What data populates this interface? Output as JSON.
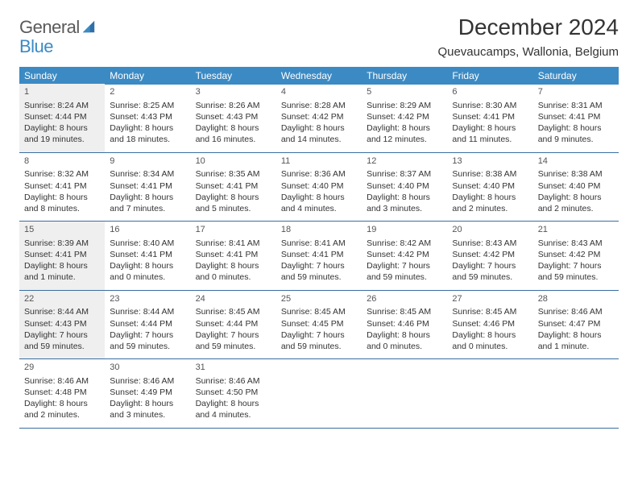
{
  "logo": {
    "textGray": "General",
    "textBlue": "Blue"
  },
  "title": "December 2024",
  "subtitle": "Quevaucamps, Wallonia, Belgium",
  "colors": {
    "headerBlue": "#3b8ac4",
    "borderBlue": "#3b6ea0",
    "shadeGray": "#efefef",
    "textDark": "#333333",
    "logoGray": "#5a5a5a"
  },
  "typography": {
    "title_fontsize": 28,
    "subtitle_fontsize": 15,
    "dayheader_fontsize": 12,
    "cell_fontsize": 10.5
  },
  "dayHeaders": [
    "Sunday",
    "Monday",
    "Tuesday",
    "Wednesday",
    "Thursday",
    "Friday",
    "Saturday"
  ],
  "weeks": [
    [
      {
        "n": "1",
        "shade": true,
        "sr": "Sunrise: 8:24 AM",
        "ss": "Sunset: 4:44 PM",
        "dl": "Daylight: 8 hours and 19 minutes."
      },
      {
        "n": "2",
        "shade": false,
        "sr": "Sunrise: 8:25 AM",
        "ss": "Sunset: 4:43 PM",
        "dl": "Daylight: 8 hours and 18 minutes."
      },
      {
        "n": "3",
        "shade": false,
        "sr": "Sunrise: 8:26 AM",
        "ss": "Sunset: 4:43 PM",
        "dl": "Daylight: 8 hours and 16 minutes."
      },
      {
        "n": "4",
        "shade": false,
        "sr": "Sunrise: 8:28 AM",
        "ss": "Sunset: 4:42 PM",
        "dl": "Daylight: 8 hours and 14 minutes."
      },
      {
        "n": "5",
        "shade": false,
        "sr": "Sunrise: 8:29 AM",
        "ss": "Sunset: 4:42 PM",
        "dl": "Daylight: 8 hours and 12 minutes."
      },
      {
        "n": "6",
        "shade": false,
        "sr": "Sunrise: 8:30 AM",
        "ss": "Sunset: 4:41 PM",
        "dl": "Daylight: 8 hours and 11 minutes."
      },
      {
        "n": "7",
        "shade": false,
        "sr": "Sunrise: 8:31 AM",
        "ss": "Sunset: 4:41 PM",
        "dl": "Daylight: 8 hours and 9 minutes."
      }
    ],
    [
      {
        "n": "8",
        "shade": false,
        "sr": "Sunrise: 8:32 AM",
        "ss": "Sunset: 4:41 PM",
        "dl": "Daylight: 8 hours and 8 minutes."
      },
      {
        "n": "9",
        "shade": false,
        "sr": "Sunrise: 8:34 AM",
        "ss": "Sunset: 4:41 PM",
        "dl": "Daylight: 8 hours and 7 minutes."
      },
      {
        "n": "10",
        "shade": false,
        "sr": "Sunrise: 8:35 AM",
        "ss": "Sunset: 4:41 PM",
        "dl": "Daylight: 8 hours and 5 minutes."
      },
      {
        "n": "11",
        "shade": false,
        "sr": "Sunrise: 8:36 AM",
        "ss": "Sunset: 4:40 PM",
        "dl": "Daylight: 8 hours and 4 minutes."
      },
      {
        "n": "12",
        "shade": false,
        "sr": "Sunrise: 8:37 AM",
        "ss": "Sunset: 4:40 PM",
        "dl": "Daylight: 8 hours and 3 minutes."
      },
      {
        "n": "13",
        "shade": false,
        "sr": "Sunrise: 8:38 AM",
        "ss": "Sunset: 4:40 PM",
        "dl": "Daylight: 8 hours and 2 minutes."
      },
      {
        "n": "14",
        "shade": false,
        "sr": "Sunrise: 8:38 AM",
        "ss": "Sunset: 4:40 PM",
        "dl": "Daylight: 8 hours and 2 minutes."
      }
    ],
    [
      {
        "n": "15",
        "shade": true,
        "sr": "Sunrise: 8:39 AM",
        "ss": "Sunset: 4:41 PM",
        "dl": "Daylight: 8 hours and 1 minute."
      },
      {
        "n": "16",
        "shade": false,
        "sr": "Sunrise: 8:40 AM",
        "ss": "Sunset: 4:41 PM",
        "dl": "Daylight: 8 hours and 0 minutes."
      },
      {
        "n": "17",
        "shade": false,
        "sr": "Sunrise: 8:41 AM",
        "ss": "Sunset: 4:41 PM",
        "dl": "Daylight: 8 hours and 0 minutes."
      },
      {
        "n": "18",
        "shade": false,
        "sr": "Sunrise: 8:41 AM",
        "ss": "Sunset: 4:41 PM",
        "dl": "Daylight: 7 hours and 59 minutes."
      },
      {
        "n": "19",
        "shade": false,
        "sr": "Sunrise: 8:42 AM",
        "ss": "Sunset: 4:42 PM",
        "dl": "Daylight: 7 hours and 59 minutes."
      },
      {
        "n": "20",
        "shade": false,
        "sr": "Sunrise: 8:43 AM",
        "ss": "Sunset: 4:42 PM",
        "dl": "Daylight: 7 hours and 59 minutes."
      },
      {
        "n": "21",
        "shade": false,
        "sr": "Sunrise: 8:43 AM",
        "ss": "Sunset: 4:42 PM",
        "dl": "Daylight: 7 hours and 59 minutes."
      }
    ],
    [
      {
        "n": "22",
        "shade": true,
        "sr": "Sunrise: 8:44 AM",
        "ss": "Sunset: 4:43 PM",
        "dl": "Daylight: 7 hours and 59 minutes."
      },
      {
        "n": "23",
        "shade": false,
        "sr": "Sunrise: 8:44 AM",
        "ss": "Sunset: 4:44 PM",
        "dl": "Daylight: 7 hours and 59 minutes."
      },
      {
        "n": "24",
        "shade": false,
        "sr": "Sunrise: 8:45 AM",
        "ss": "Sunset: 4:44 PM",
        "dl": "Daylight: 7 hours and 59 minutes."
      },
      {
        "n": "25",
        "shade": false,
        "sr": "Sunrise: 8:45 AM",
        "ss": "Sunset: 4:45 PM",
        "dl": "Daylight: 7 hours and 59 minutes."
      },
      {
        "n": "26",
        "shade": false,
        "sr": "Sunrise: 8:45 AM",
        "ss": "Sunset: 4:46 PM",
        "dl": "Daylight: 8 hours and 0 minutes."
      },
      {
        "n": "27",
        "shade": false,
        "sr": "Sunrise: 8:45 AM",
        "ss": "Sunset: 4:46 PM",
        "dl": "Daylight: 8 hours and 0 minutes."
      },
      {
        "n": "28",
        "shade": false,
        "sr": "Sunrise: 8:46 AM",
        "ss": "Sunset: 4:47 PM",
        "dl": "Daylight: 8 hours and 1 minute."
      }
    ],
    [
      {
        "n": "29",
        "shade": false,
        "sr": "Sunrise: 8:46 AM",
        "ss": "Sunset: 4:48 PM",
        "dl": "Daylight: 8 hours and 2 minutes."
      },
      {
        "n": "30",
        "shade": false,
        "sr": "Sunrise: 8:46 AM",
        "ss": "Sunset: 4:49 PM",
        "dl": "Daylight: 8 hours and 3 minutes."
      },
      {
        "n": "31",
        "shade": false,
        "sr": "Sunrise: 8:46 AM",
        "ss": "Sunset: 4:50 PM",
        "dl": "Daylight: 8 hours and 4 minutes."
      },
      {
        "empty": true
      },
      {
        "empty": true
      },
      {
        "empty": true
      },
      {
        "empty": true
      }
    ]
  ]
}
